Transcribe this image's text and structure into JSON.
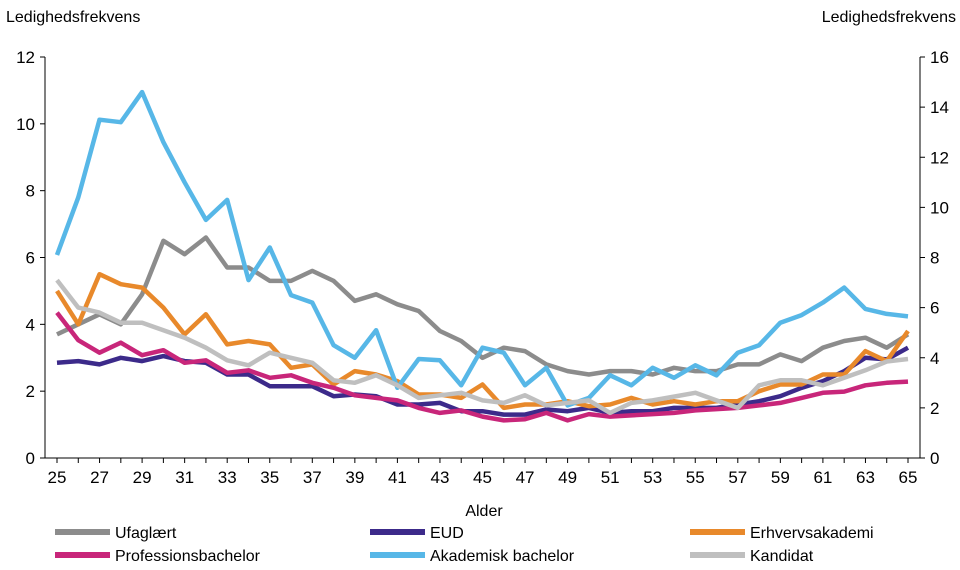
{
  "chart_data": {
    "type": "line",
    "xlabel": "Alder",
    "ylabel_left": "Ledighedsfrekvens",
    "ylabel_right": "Ledighedsfrekvens",
    "ylim_left": [
      0,
      12
    ],
    "ylim_right": [
      0,
      16
    ],
    "yticks_left": [
      "0",
      "2",
      "4",
      "6",
      "8",
      "10",
      "12"
    ],
    "yticks_right": [
      "0",
      "2",
      "4",
      "6",
      "8",
      "10",
      "12",
      "14",
      "16"
    ],
    "x": [
      25,
      26,
      27,
      28,
      29,
      30,
      31,
      32,
      33,
      34,
      35,
      36,
      37,
      38,
      39,
      40,
      41,
      42,
      43,
      44,
      45,
      46,
      47,
      48,
      49,
      50,
      51,
      52,
      53,
      54,
      55,
      56,
      57,
      58,
      59,
      60,
      61,
      62,
      63,
      64,
      65
    ],
    "xtick_labels": [
      "25",
      "27",
      "29",
      "31",
      "33",
      "35",
      "37",
      "39",
      "41",
      "43",
      "45",
      "47",
      "49",
      "51",
      "53",
      "55",
      "57",
      "59",
      "61",
      "63",
      "65"
    ],
    "grid": false,
    "legend_position": "bottom",
    "series": [
      {
        "name": "Ufaglært",
        "color": "#8c8c8c",
        "axis": "left",
        "values": [
          3.7,
          4.0,
          4.3,
          4.0,
          4.9,
          6.5,
          6.1,
          6.6,
          5.7,
          5.7,
          5.3,
          5.3,
          5.6,
          5.3,
          4.7,
          4.9,
          4.6,
          4.4,
          3.8,
          3.5,
          3.0,
          3.3,
          3.2,
          2.8,
          2.6,
          2.5,
          2.6,
          2.6,
          2.5,
          2.7,
          2.6,
          2.6,
          2.8,
          2.8,
          3.1,
          2.9,
          3.3,
          3.5,
          3.6,
          3.3,
          3.7
        ]
      },
      {
        "name": "EUD",
        "color": "#3c2a8a",
        "axis": "left",
        "values": [
          2.85,
          2.9,
          2.8,
          3.0,
          2.9,
          3.05,
          2.9,
          2.85,
          2.5,
          2.5,
          2.15,
          2.15,
          2.15,
          1.85,
          1.9,
          1.85,
          1.6,
          1.6,
          1.65,
          1.4,
          1.4,
          1.3,
          1.3,
          1.45,
          1.4,
          1.5,
          1.35,
          1.4,
          1.4,
          1.5,
          1.5,
          1.5,
          1.6,
          1.7,
          1.85,
          2.1,
          2.3,
          2.6,
          3.0,
          2.95,
          3.3
        ]
      },
      {
        "name": "Erhvervsakademi",
        "color": "#e8892b",
        "axis": "left",
        "values": [
          5.0,
          4.0,
          5.5,
          5.2,
          5.1,
          4.5,
          3.7,
          4.3,
          3.4,
          3.5,
          3.4,
          2.7,
          2.8,
          2.2,
          2.6,
          2.5,
          2.3,
          1.9,
          1.9,
          1.8,
          2.2,
          1.5,
          1.6,
          1.6,
          1.7,
          1.55,
          1.6,
          1.8,
          1.6,
          1.7,
          1.6,
          1.7,
          1.7,
          2.0,
          2.2,
          2.2,
          2.5,
          2.5,
          3.2,
          2.9,
          3.8
        ]
      },
      {
        "name": "Professionsbachelor",
        "color": "#c8267a",
        "axis": "right",
        "values": [
          5.8,
          4.7,
          4.2,
          4.6,
          4.1,
          4.3,
          3.8,
          3.9,
          3.4,
          3.5,
          3.2,
          3.3,
          3.0,
          2.8,
          2.5,
          2.4,
          2.3,
          2.0,
          1.8,
          1.9,
          1.65,
          1.5,
          1.55,
          1.8,
          1.5,
          1.75,
          1.65,
          1.7,
          1.75,
          1.8,
          1.9,
          1.95,
          2.0,
          2.1,
          2.2,
          2.4,
          2.6,
          2.65,
          2.9,
          3.0,
          3.05
        ]
      },
      {
        "name": "Akademisk bachelor",
        "color": "#57b7e7",
        "axis": "right",
        "values": [
          8.1,
          10.4,
          13.5,
          13.4,
          14.6,
          12.6,
          11.0,
          9.5,
          10.3,
          7.1,
          8.4,
          6.5,
          6.2,
          4.5,
          4.0,
          5.1,
          2.8,
          3.95,
          3.9,
          2.9,
          4.4,
          4.2,
          2.9,
          3.6,
          2.1,
          2.4,
          3.3,
          2.9,
          3.6,
          3.2,
          3.7,
          3.3,
          4.2,
          4.5,
          5.4,
          5.7,
          6.2,
          6.8,
          5.95,
          5.75,
          5.65
        ]
      },
      {
        "name": "Kandidat",
        "color": "#bfbfbf",
        "axis": "right",
        "values": [
          7.1,
          6.0,
          5.8,
          5.4,
          5.4,
          5.1,
          4.8,
          4.4,
          3.9,
          3.7,
          4.2,
          4.0,
          3.8,
          3.1,
          3.0,
          3.3,
          2.9,
          2.4,
          2.5,
          2.6,
          2.3,
          2.2,
          2.5,
          2.1,
          2.2,
          2.3,
          1.8,
          2.2,
          2.3,
          2.45,
          2.6,
          2.3,
          2.0,
          2.9,
          3.1,
          3.1,
          2.9,
          3.2,
          3.5,
          3.85,
          3.95
        ]
      }
    ]
  }
}
